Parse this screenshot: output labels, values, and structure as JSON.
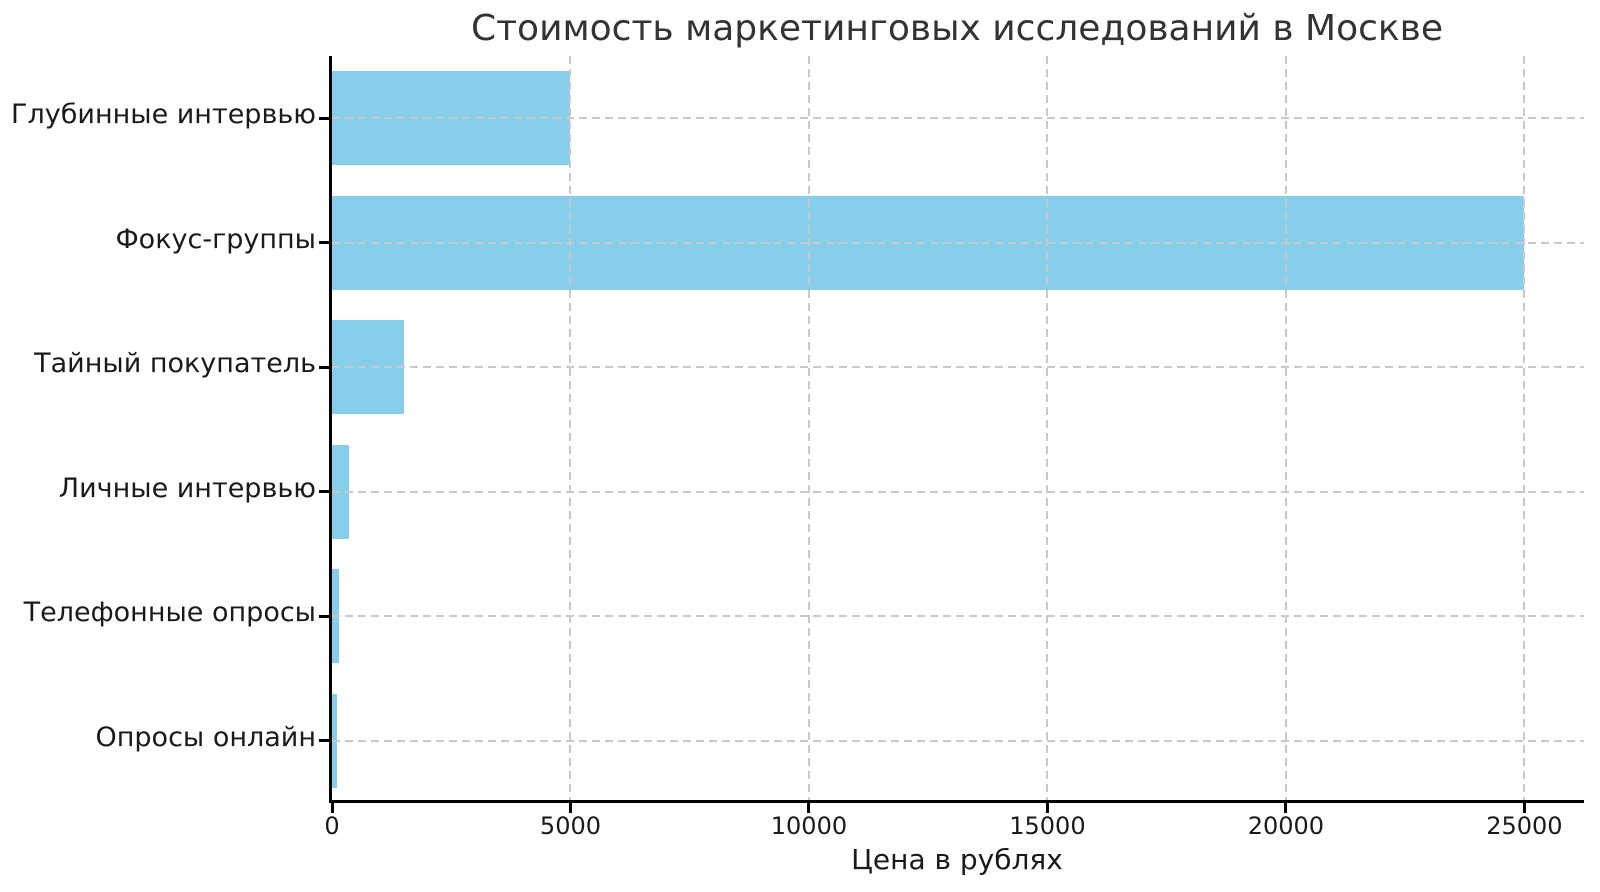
{
  "chart_data": {
    "type": "bar",
    "orientation": "horizontal",
    "title": "Стоимость маркетинговых исследований в Москве",
    "categories": [
      "Глубинные интервью",
      "Фокус-группы",
      "Тайный покупатель",
      "Личные интервью",
      "Телефонные опросы",
      "Опросы онлайн"
    ],
    "values": [
      5000,
      25000,
      1500,
      350,
      150,
      100
    ],
    "xlabel": "Цена в рублях",
    "x_ticks": [
      0,
      5000,
      10000,
      15000,
      20000,
      25000
    ],
    "xlim": [
      0,
      26250
    ],
    "bar_color": "#87CEEB",
    "grid": true,
    "grid_style": "dashed",
    "grid_color": "#c9c9c9",
    "axis_color": "#000000",
    "title_color": "#333333",
    "legend": "none"
  }
}
